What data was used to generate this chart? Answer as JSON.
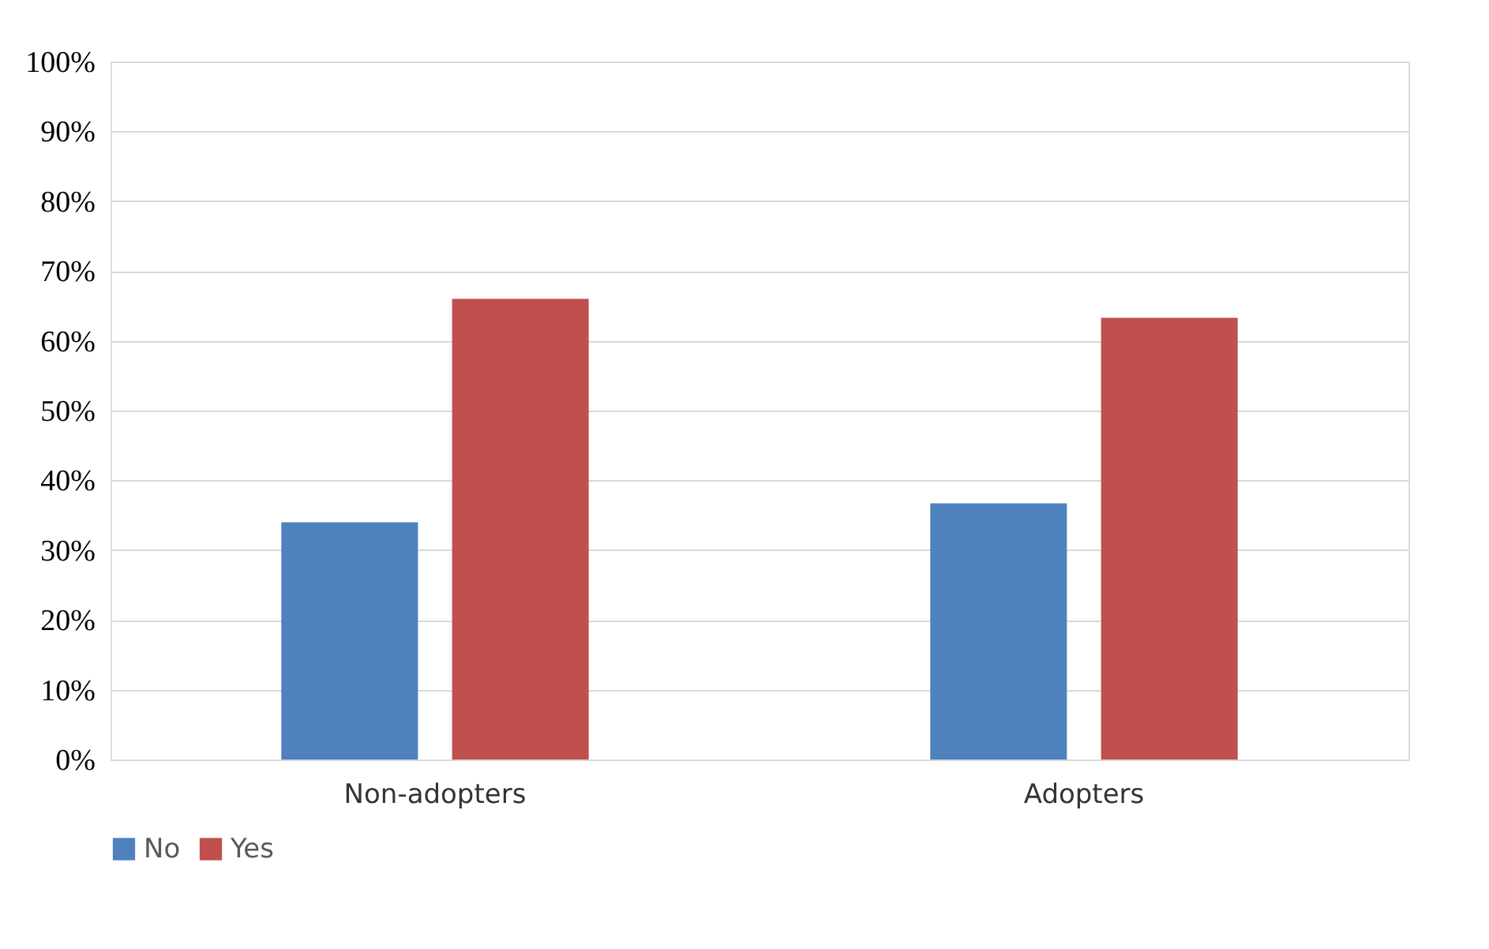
{
  "chart_data": {
    "type": "bar",
    "categories": [
      "Non-adopters",
      "Adopters"
    ],
    "series": [
      {
        "name": "No",
        "color": "#4f81bd",
        "values": [
          34,
          36.7
        ]
      },
      {
        "name": "Yes",
        "color": "#c0504d",
        "values": [
          66,
          63.3
        ]
      }
    ],
    "ylim": [
      0,
      100
    ],
    "yticks": [
      {
        "value": 0,
        "label": "0%"
      },
      {
        "value": 10,
        "label": "10%"
      },
      {
        "value": 20,
        "label": "20%"
      },
      {
        "value": 30,
        "label": "30%"
      },
      {
        "value": 40,
        "label": "40%"
      },
      {
        "value": 50,
        "label": "50%"
      },
      {
        "value": 60,
        "label": "60%"
      },
      {
        "value": 70,
        "label": "70%"
      },
      {
        "value": 80,
        "label": "80%"
      },
      {
        "value": 90,
        "label": "90%"
      },
      {
        "value": 100,
        "label": "100%"
      }
    ],
    "grid": "y",
    "legend": "bottom"
  }
}
